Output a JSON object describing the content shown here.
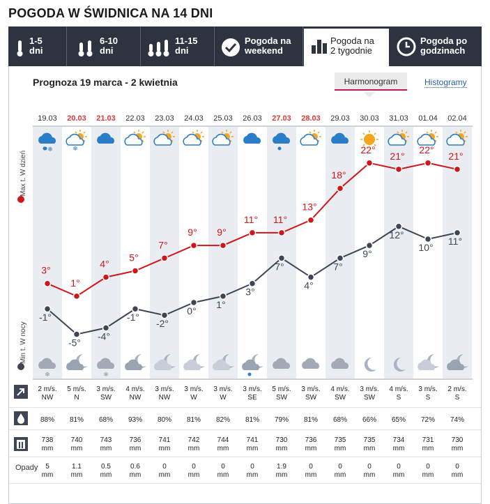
{
  "title": "POGODA W ŚWIDNICA NA 14 DNI",
  "tabs": [
    {
      "line1": "1-5",
      "line2": "dni",
      "icon": "thermometer-icon"
    },
    {
      "line1": "6-10",
      "line2": "dni",
      "icon": "thermometer-double-icon"
    },
    {
      "line1": "11-15",
      "line2": "dni",
      "icon": "thermometer-triple-icon"
    },
    {
      "line1": "Pogoda na",
      "line2": "weekend",
      "icon": "check-circle-icon"
    },
    {
      "line1": "Pogoda na",
      "line2": "2 tygodnie",
      "icon": "bar-chart-icon"
    },
    {
      "line1": "Pogoda po",
      "line2": "godzinach",
      "icon": "clock-icon"
    }
  ],
  "range_label": "Prognoza 19 marca - 2 kwietnia",
  "view_tabs": {
    "harmonogram": "Harmonogram",
    "histogramy": "Histogramy"
  },
  "axis": {
    "max_label": "Max t. W dzień",
    "min_label": "Min t. W nocy"
  },
  "colors": {
    "max": "#d0161b",
    "min": "#3e4656",
    "bg_col": "#e9ecf0",
    "accent": "#c2185b"
  },
  "days": [
    {
      "date": "19.03",
      "weekend": false,
      "day_icon": "cloud-snow-rain",
      "night_icon": "cloud-snow",
      "max": 3,
      "min": -1,
      "wind_speed": "2 m/s.",
      "wind_dir": "NW",
      "humidity": "88%",
      "pressure": "738",
      "precip": "5"
    },
    {
      "date": "20.03",
      "weekend": true,
      "day_icon": "sun-cloud-snow",
      "night_icon": "moon-cloud",
      "max": 1,
      "min": -5,
      "wind_speed": "5 m/s.",
      "wind_dir": "N",
      "humidity": "81%",
      "pressure": "740",
      "precip": "1.1"
    },
    {
      "date": "21.03",
      "weekend": true,
      "day_icon": "cloud",
      "night_icon": "cloud-snow-rain",
      "max": 4,
      "min": -4,
      "wind_speed": "3 m/s.",
      "wind_dir": "SW",
      "humidity": "68%",
      "pressure": "743",
      "precip": "0.5"
    },
    {
      "date": "22.03",
      "weekend": false,
      "day_icon": "sun-cloud",
      "night_icon": "moon-cloud",
      "max": 5,
      "min": -1,
      "wind_speed": "4 m/s.",
      "wind_dir": "NW",
      "humidity": "93%",
      "pressure": "736",
      "precip": "0.6"
    },
    {
      "date": "23.03",
      "weekend": false,
      "day_icon": "sun-cloud",
      "night_icon": "moon-cloud-light",
      "max": 7,
      "min": -2,
      "wind_speed": "3 m/s.",
      "wind_dir": "NW",
      "humidity": "80%",
      "pressure": "741",
      "precip": "0"
    },
    {
      "date": "24.03",
      "weekend": false,
      "day_icon": "sun-cloud",
      "night_icon": "moon-cloud-light",
      "max": 9,
      "min": 0,
      "wind_speed": "3 m/s.",
      "wind_dir": "W",
      "humidity": "81%",
      "pressure": "742",
      "precip": "0"
    },
    {
      "date": "25.03",
      "weekend": false,
      "day_icon": "sun-cloud",
      "night_icon": "moon-cloud-light",
      "max": 9,
      "min": 1,
      "wind_speed": "3 m/s.",
      "wind_dir": "W",
      "humidity": "82%",
      "pressure": "744",
      "precip": "0"
    },
    {
      "date": "26.03",
      "weekend": false,
      "day_icon": "cloud",
      "night_icon": "moon-cloud-rain",
      "max": 11,
      "min": 3,
      "wind_speed": "3 m/s.",
      "wind_dir": "SE",
      "humidity": "81%",
      "pressure": "741",
      "precip": "0"
    },
    {
      "date": "27.03",
      "weekend": true,
      "day_icon": "cloud-rain",
      "night_icon": "cloud",
      "max": 11,
      "min": 7,
      "wind_speed": "5 m/s.",
      "wind_dir": "SW",
      "humidity": "79%",
      "pressure": "730",
      "precip": "1.9"
    },
    {
      "date": "28.03",
      "weekend": true,
      "day_icon": "sun-cloud",
      "night_icon": "cloud",
      "max": 13,
      "min": 4,
      "wind_speed": "3 m/s.",
      "wind_dir": "SW",
      "humidity": "81%",
      "pressure": "736",
      "precip": "0"
    },
    {
      "date": "29.03",
      "weekend": false,
      "day_icon": "cloud",
      "night_icon": "cloud",
      "max": 18,
      "min": 7,
      "wind_speed": "4 m/s.",
      "wind_dir": "SW",
      "humidity": "68%",
      "pressure": "735",
      "precip": "0"
    },
    {
      "date": "30.03",
      "weekend": false,
      "day_icon": "sun",
      "night_icon": "moon",
      "max": 22,
      "min": 9,
      "wind_speed": "3 m/s.",
      "wind_dir": "SW",
      "humidity": "66%",
      "pressure": "735",
      "precip": "0"
    },
    {
      "date": "31.03",
      "weekend": false,
      "day_icon": "sun-cloud",
      "night_icon": "moon",
      "max": 21,
      "min": 12,
      "wind_speed": "4 m/s.",
      "wind_dir": "S",
      "humidity": "65%",
      "pressure": "734",
      "precip": "0"
    },
    {
      "date": "01.04",
      "weekend": false,
      "day_icon": "sun-cloud",
      "night_icon": "moon-cloud-light",
      "max": 22,
      "min": 10,
      "wind_speed": "3 m/s.",
      "wind_dir": "S",
      "humidity": "72%",
      "pressure": "731",
      "precip": "0"
    },
    {
      "date": "02.04",
      "weekend": false,
      "day_icon": "sun-cloud",
      "night_icon": "moon-cloud",
      "max": 21,
      "min": 11,
      "wind_speed": "2 m/s.",
      "wind_dir": "S",
      "humidity": "74%",
      "pressure": "730",
      "precip": "0"
    }
  ],
  "units": {
    "pressure": "mm",
    "precip": "mm"
  },
  "precip_label": "Opady",
  "chart_data": {
    "type": "line",
    "categories": [
      "19.03",
      "20.03",
      "21.03",
      "22.03",
      "23.03",
      "24.03",
      "25.03",
      "26.03",
      "27.03",
      "28.03",
      "29.03",
      "30.03",
      "31.03",
      "01.04",
      "02.04"
    ],
    "series": [
      {
        "name": "Max t. W dzień",
        "values": [
          3,
          1,
          4,
          5,
          7,
          9,
          9,
          11,
          11,
          13,
          18,
          22,
          21,
          22,
          21
        ]
      },
      {
        "name": "Min t. W nocy",
        "values": [
          -1,
          -5,
          -4,
          -1,
          -2,
          0,
          1,
          3,
          7,
          4,
          7,
          9,
          12,
          10,
          11
        ]
      }
    ],
    "unit": "°C"
  }
}
